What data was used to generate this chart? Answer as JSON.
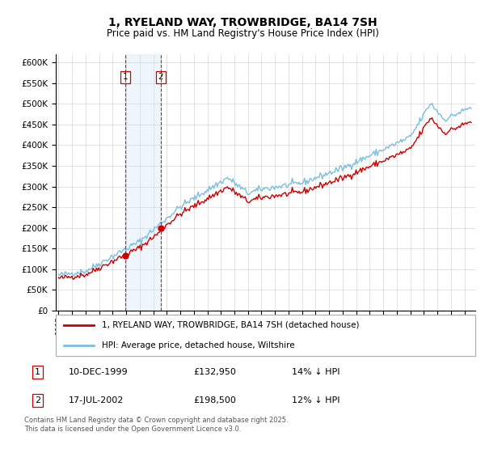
{
  "title": "1, RYELAND WAY, TROWBRIDGE, BA14 7SH",
  "subtitle": "Price paid vs. HM Land Registry's House Price Index (HPI)",
  "legend_line1": "1, RYELAND WAY, TROWBRIDGE, BA14 7SH (detached house)",
  "legend_line2": "HPI: Average price, detached house, Wiltshire",
  "sale1_label": "1",
  "sale1_date": "10-DEC-1999",
  "sale1_price": "£132,950",
  "sale1_hpi": "14% ↓ HPI",
  "sale2_label": "2",
  "sale2_date": "17-JUL-2002",
  "sale2_price": "£198,500",
  "sale2_hpi": "12% ↓ HPI",
  "footer": "Contains HM Land Registry data © Crown copyright and database right 2025.\nThis data is licensed under the Open Government Licence v3.0.",
  "hpi_color": "#7bbfdf",
  "price_color": "#cc0000",
  "sale_marker_color": "#cc0000",
  "vline_color": "#cc0000",
  "shade_color": "#cce4f5",
  "ylim": [
    0,
    620000
  ],
  "ylabel_step": 50000,
  "xmin": 1994.8,
  "xmax": 2025.8,
  "sale1_year": 1999.958,
  "sale2_year": 2002.542,
  "sale1_price_val": 132950,
  "sale2_price_val": 198500
}
